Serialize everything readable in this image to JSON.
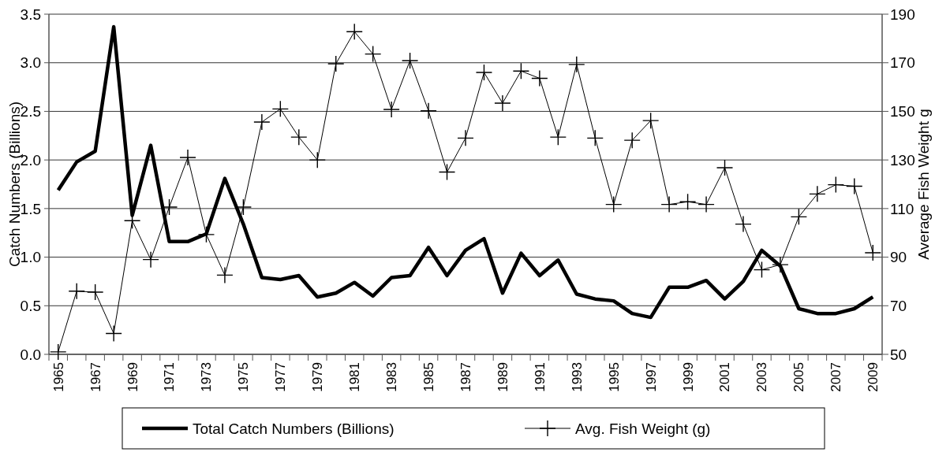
{
  "chart_data": {
    "type": "line",
    "ylabel": "Catch Numbers (Billions)",
    "y2label": "Average Fish Weight g",
    "categories": [
      "1965",
      null,
      "1967",
      null,
      "1969",
      null,
      "1971",
      null,
      "1973",
      null,
      "1975",
      null,
      "1977",
      null,
      "1979",
      null,
      "1981",
      null,
      "1983",
      null,
      "1985",
      null,
      "1987",
      null,
      "1989",
      null,
      "1991",
      null,
      "1993",
      null,
      "1995",
      null,
      "1997",
      null,
      "1999",
      null,
      "2001",
      null,
      "2003",
      null,
      "2005",
      null,
      "2007",
      null,
      "2009"
    ],
    "series": [
      {
        "name": "Total Catch Numbers (Billions)",
        "color": "#000000",
        "marker": "none",
        "values": [
          1.69,
          1.98,
          2.09,
          3.37,
          1.43,
          2.15,
          1.16,
          1.16,
          1.24,
          1.81,
          1.34,
          0.79,
          0.77,
          0.81,
          0.59,
          0.63,
          0.74,
          0.6,
          0.79,
          0.81,
          1.1,
          0.81,
          1.07,
          1.19,
          0.63,
          1.04,
          0.81,
          0.97,
          0.62,
          0.57,
          0.55,
          0.42,
          0.38,
          0.69,
          0.69,
          0.76,
          0.57,
          0.75,
          1.07,
          0.91,
          0.47,
          0.42,
          0.42,
          0.47,
          0.59
        ]
      },
      {
        "name": "Avg. Fish Weight (g)",
        "color": "#000000",
        "marker": "cross",
        "axis": "y2",
        "values": [
          51,
          76,
          75.6,
          58.6,
          105,
          89,
          110.6,
          131,
          99.3,
          82.6,
          110.6,
          145.6,
          151,
          139.4,
          130,
          169.6,
          182.8,
          173.6,
          150.8,
          170.9,
          150.2,
          125,
          139,
          166,
          153.4,
          166.6,
          163.6,
          139.4,
          169.3,
          139,
          111.7,
          138.1,
          146.2,
          111.7,
          112.8,
          111.7,
          126.8,
          103.6,
          84.8,
          86.9,
          106.6,
          116,
          119.8,
          119.2,
          91.8
        ]
      }
    ],
    "ylim": [
      0,
      3.5
    ],
    "yticks": [
      {
        "value": 0,
        "label": "0.0"
      },
      0.5,
      {
        "value": 1,
        "label": "1.0"
      },
      1.5,
      {
        "value": 2,
        "label": "2.0"
      },
      2.5,
      {
        "value": 3,
        "label": "3.0"
      },
      3.5
    ],
    "y2lim": [
      50,
      190
    ],
    "y2ticks": [
      50,
      70,
      90,
      110,
      130,
      150,
      170,
      190
    ],
    "grid": "y",
    "legend": "bottom"
  }
}
